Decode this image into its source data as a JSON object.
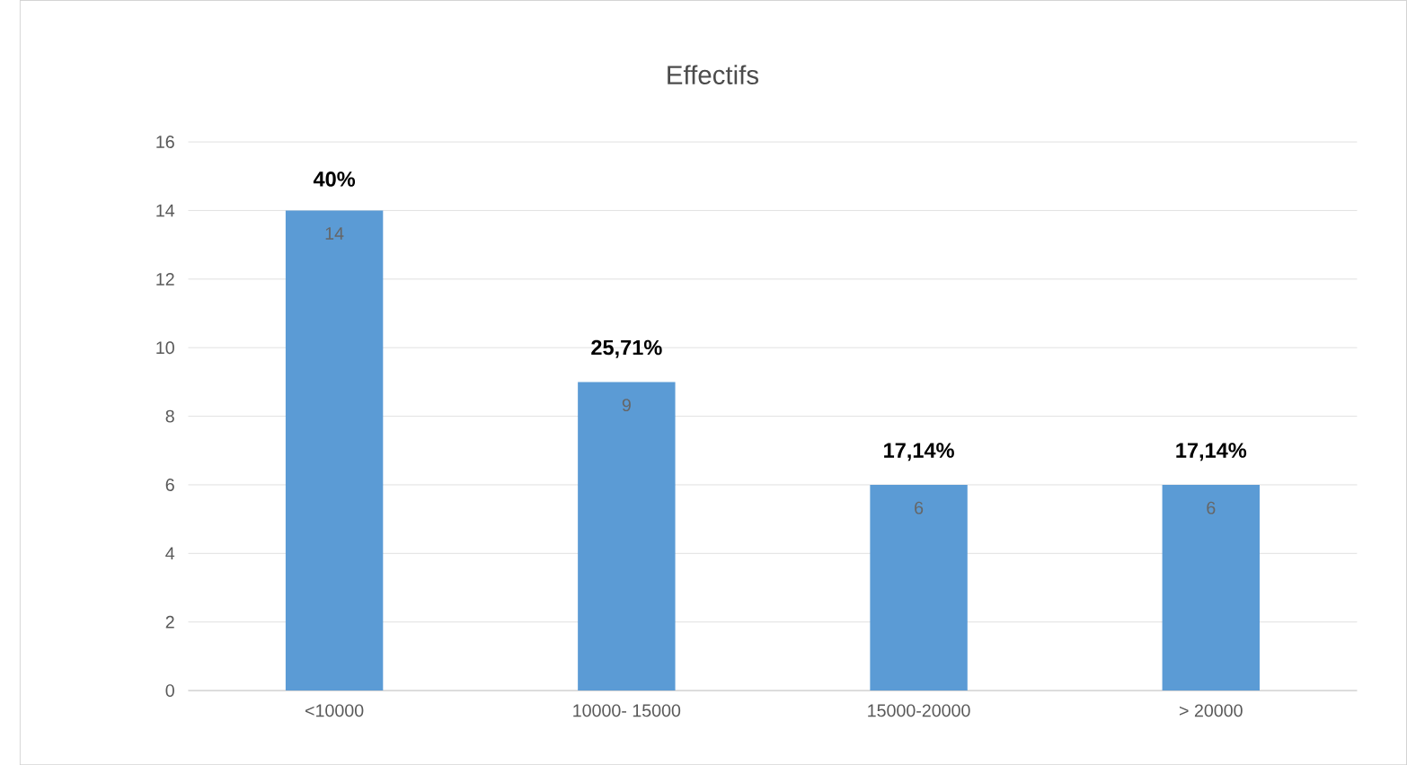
{
  "chart_data": {
    "type": "bar",
    "title": "Effectifs",
    "categories": [
      "<10000",
      "10000- 15000",
      "15000-20000",
      "> 20000"
    ],
    "values": [
      14,
      9,
      6,
      6
    ],
    "color": "#5b9bd5",
    "data_labels": true,
    "ylim": [
      0,
      16
    ],
    "yticks": [
      0,
      2,
      4,
      6,
      8,
      10,
      12,
      14,
      16
    ],
    "grid": "y",
    "annotations": [
      {
        "text": "40%",
        "x": "<10000",
        "y": 14
      },
      {
        "text": "25,71%",
        "x": "10000- 15000",
        "y": 9
      },
      {
        "text": "17,14%",
        "x": "15000-20000",
        "y": 6
      },
      {
        "text": "17,14%",
        "x": "> 20000",
        "y": 6
      }
    ]
  }
}
